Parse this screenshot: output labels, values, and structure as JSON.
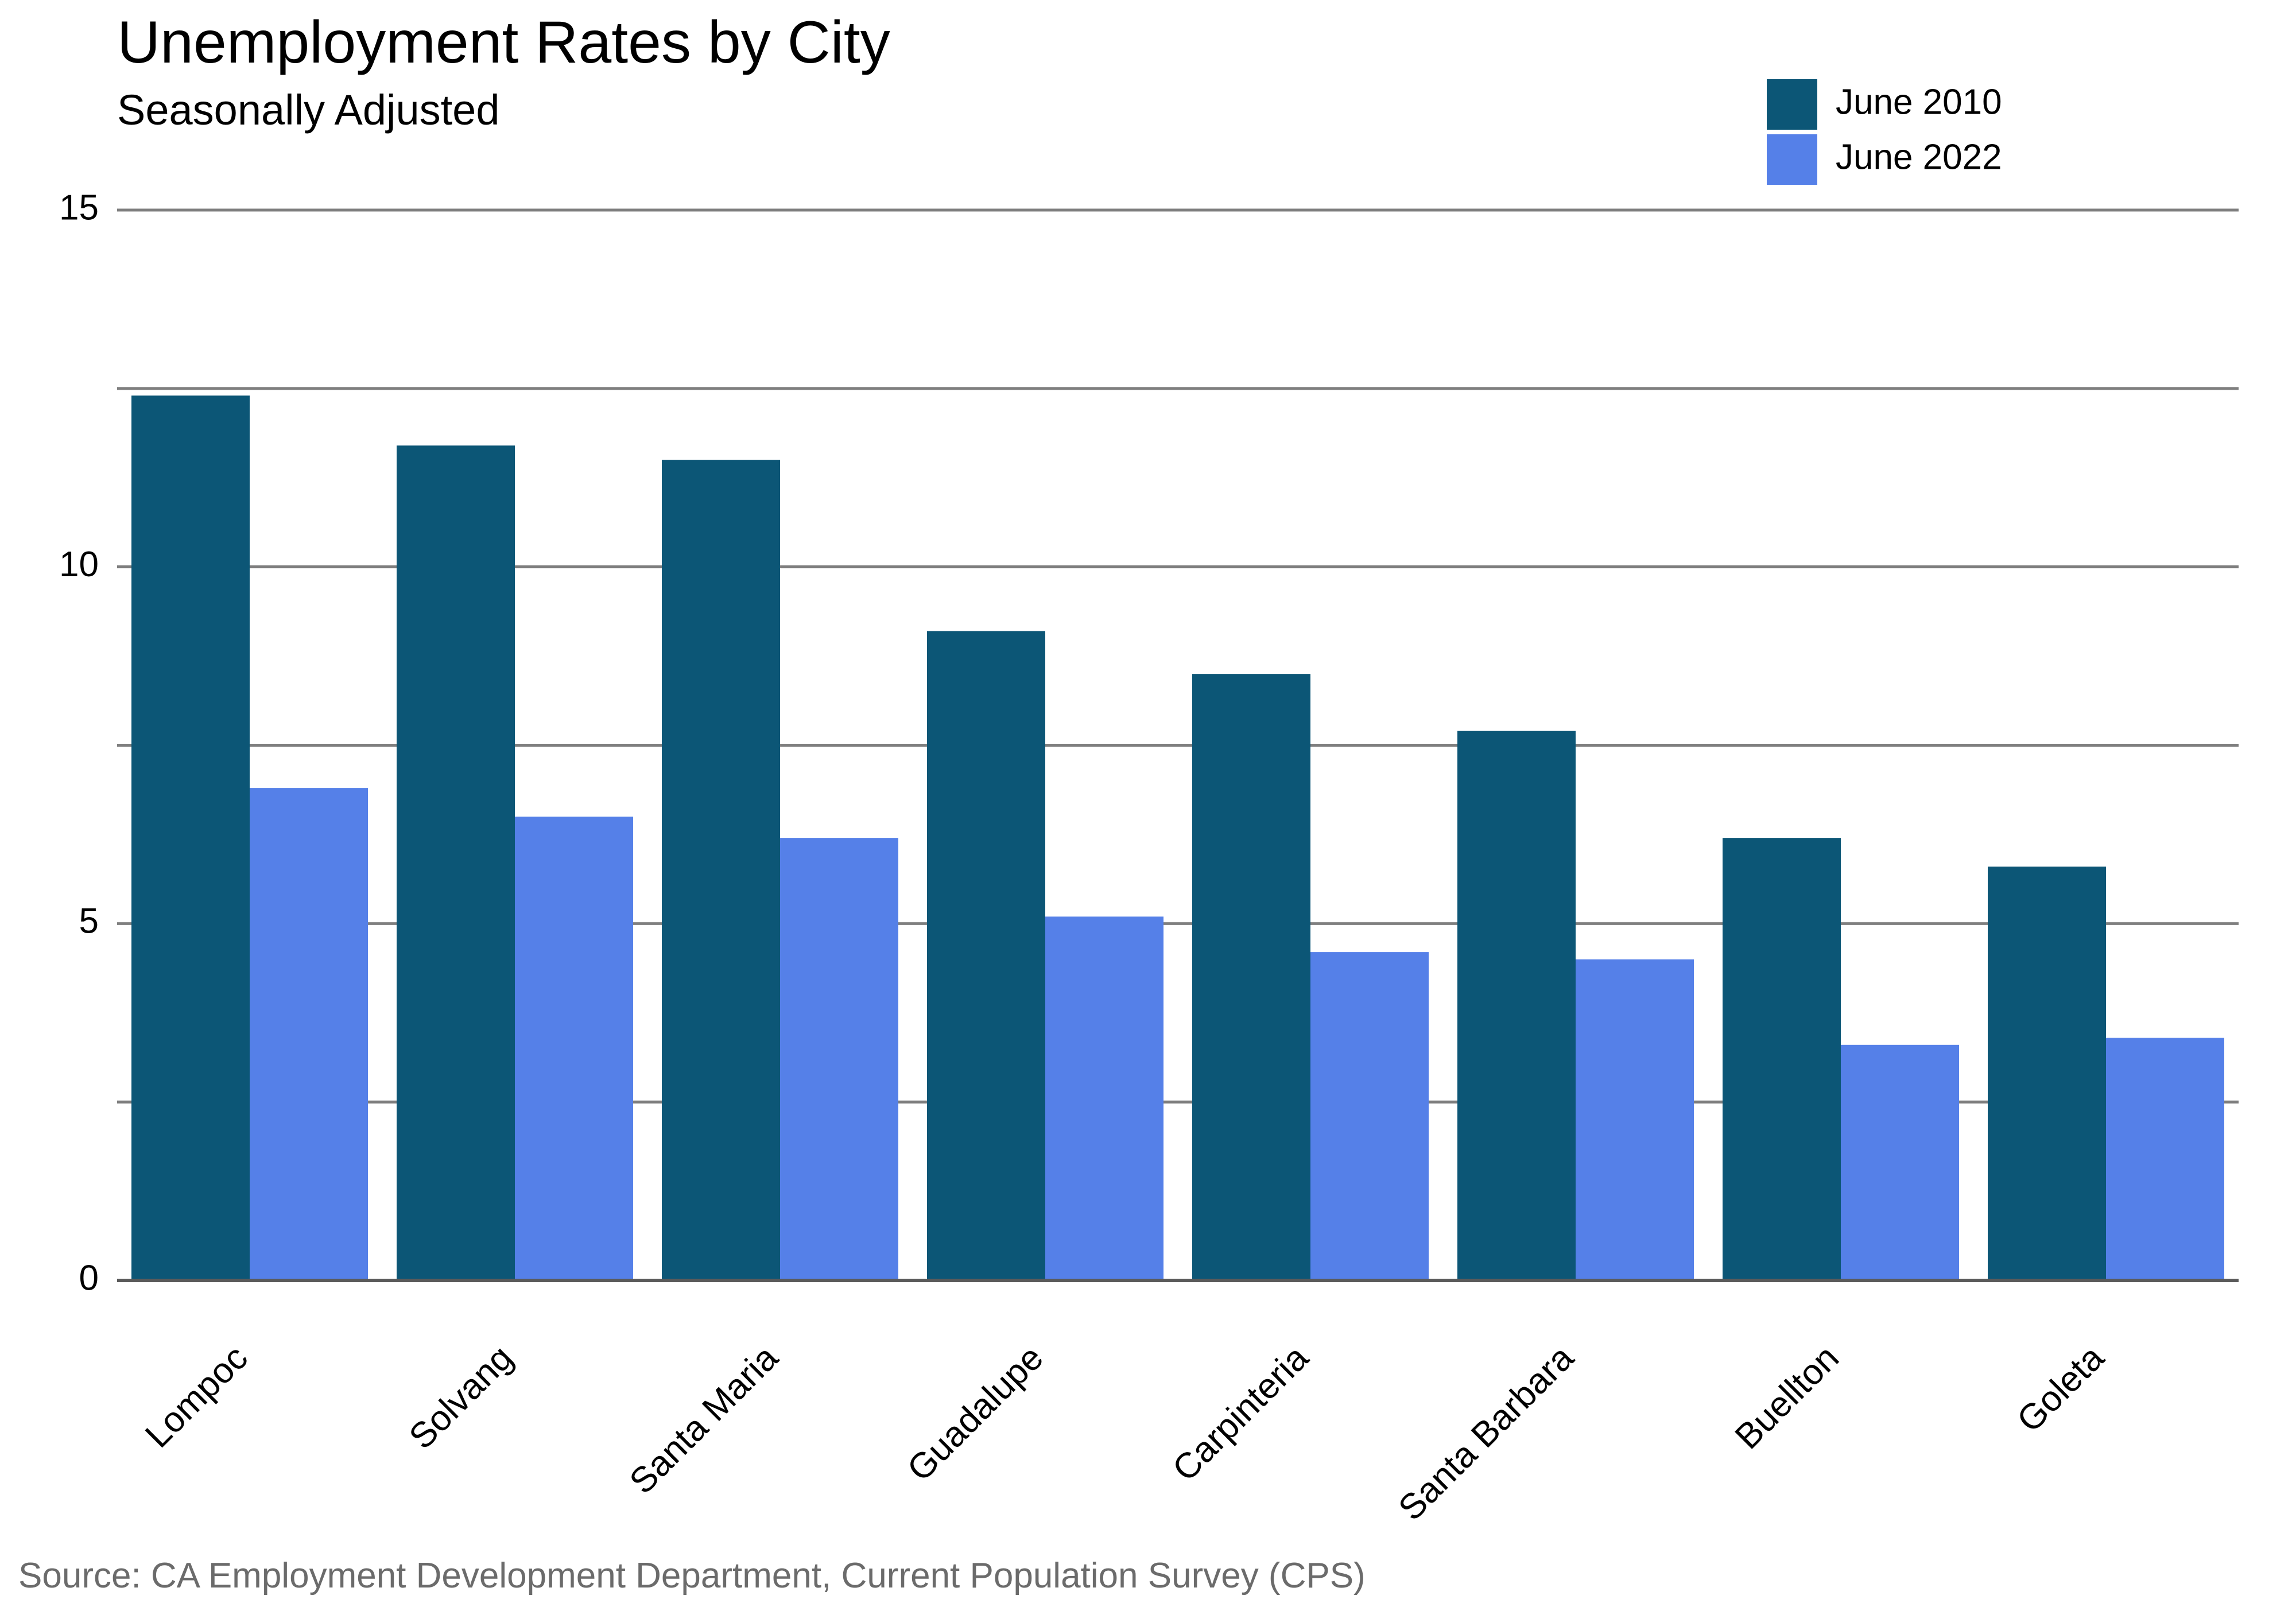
{
  "chart_data": {
    "type": "bar",
    "title": "Unemployment Rates by City",
    "subtitle": "Seasonally Adjusted",
    "source": "Source: CA Employment Development Department, Current Population Survey (CPS)",
    "xlabel": "",
    "ylabel": "",
    "ylim": [
      0,
      15
    ],
    "yticks": [
      0,
      5,
      10,
      15
    ],
    "gridlines": [
      2.5,
      5,
      7.5,
      10,
      12.5,
      15
    ],
    "grid": true,
    "legend_position": "top-right",
    "categories": [
      "Lompoc",
      "Solvang",
      "Santa Maria",
      "Guadalupe",
      "Carpinteria",
      "Santa Barbara",
      "Buellton",
      "Goleta"
    ],
    "series": [
      {
        "name": "June 2010",
        "color": "#0c5676",
        "values": [
          12.4,
          11.7,
          11.5,
          9.1,
          8.5,
          7.7,
          6.2,
          5.8
        ]
      },
      {
        "name": "June 2022",
        "color": "#5580e8",
        "values": [
          6.9,
          6.5,
          6.2,
          5.1,
          4.6,
          4.5,
          3.3,
          3.4
        ]
      }
    ]
  }
}
